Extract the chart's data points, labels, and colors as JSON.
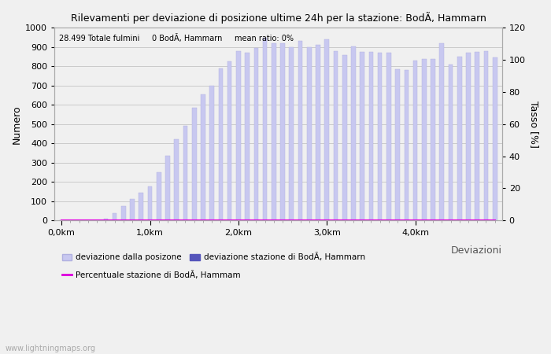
{
  "title": "Rilevamenti per deviazione di posizione ultime 24h per la stazione: BodÃÃÂ¸, Hammarn",
  "title_display": "Rilevamenti per deviazione di posizione ultime 24h per la stazione: BodÃ, Hammarn",
  "annotation": "28.499 Totale fulmini     0 BodÃ, Hammarn     mean ratio: 0%",
  "xlabel": "Deviazioni",
  "ylabel_left": "Numero",
  "ylabel_right": "Tasso [%]",
  "ylim_left": [
    0,
    1000
  ],
  "ylim_right": [
    0,
    120
  ],
  "bar_color": "#c8c8f0",
  "bar_edge_color": "#b0b0e0",
  "station_color": "#5555bb",
  "ratio_color": "#dd00dd",
  "background_color": "#f0f0f0",
  "grid_color": "#bbbbbb",
  "watermark": "www.lightningmaps.org",
  "legend_label1": "deviazione dalla posizone",
  "legend_label2": "deviazione stazione di BodÃ, Hammarn",
  "legend_label3": "Percentuale stazione di BodÃ, Hammam",
  "xtick_labels": [
    "0,0km",
    "1,0km",
    "2,0km",
    "3,0km",
    "4,0km"
  ],
  "xtick_positions": [
    0,
    10,
    20,
    30,
    40
  ],
  "bar_values": [
    2,
    0,
    3,
    0,
    0,
    10,
    40,
    75,
    110,
    145,
    175,
    250,
    335,
    420,
    490,
    585,
    655,
    700,
    790,
    825,
    880,
    870,
    895,
    950,
    920,
    920,
    900,
    930,
    900,
    910,
    940,
    880,
    860,
    905,
    875,
    875,
    870,
    870,
    785,
    780,
    830,
    840,
    840,
    920,
    810,
    850,
    870,
    875,
    880,
    845
  ],
  "station_bar_index": 0,
  "ratio_values": [
    0,
    0,
    0,
    0,
    0,
    0,
    0,
    0,
    0,
    0,
    0,
    0,
    0,
    0,
    0,
    0,
    0,
    0,
    0,
    0,
    0,
    0,
    0,
    0,
    0,
    0,
    0,
    0,
    0,
    0,
    0,
    0,
    0,
    0,
    0,
    0,
    0,
    0,
    0,
    0,
    0,
    0,
    0,
    0,
    0,
    0,
    0,
    0,
    0,
    0
  ]
}
